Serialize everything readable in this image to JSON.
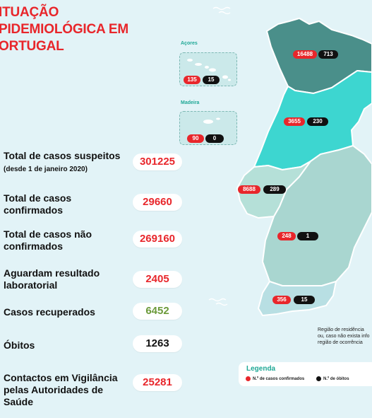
{
  "title": {
    "line1": "ITUAÇÃO",
    "line2": "PIDEMIOLÓGICA EM",
    "line3": "ORTUGAL"
  },
  "stats": [
    {
      "label": "Total de casos suspeitos",
      "sub": "(desde 1 de janeiro 2020)",
      "value": "301225"
    },
    {
      "label": "Total de casos confirmados",
      "value": "29660"
    },
    {
      "label": "Total de casos não confirmados",
      "value": "269160"
    },
    {
      "label": "Aguardam resultado laboratorial",
      "value": "2405"
    },
    {
      "label": "Casos recuperados",
      "value": "6452"
    },
    {
      "label": "Óbitos",
      "value": "1263"
    },
    {
      "label": "Contactos em Vigilância pelas Autoridades de Saúde",
      "value": "25281"
    }
  ],
  "islands": {
    "acores": {
      "label": "Açores",
      "confirmed": "135",
      "deaths": "15"
    },
    "madeira": {
      "label": "Madeira",
      "confirmed": "90",
      "deaths": "0"
    }
  },
  "regions": {
    "norte": {
      "confirmed": "16488",
      "deaths": "713",
      "color": "#4a8f8a"
    },
    "centro": {
      "confirmed": "3655",
      "deaths": "230",
      "color": "#3dd6d0"
    },
    "lisboa": {
      "confirmed": "8688",
      "deaths": "289",
      "color": "#b5e0d8"
    },
    "alentejo": {
      "confirmed": "248",
      "deaths": "1",
      "color": "#a9d6d0"
    },
    "algarve": {
      "confirmed": "356",
      "deaths": "15",
      "color": "#b8dfe3"
    }
  },
  "note": {
    "line1": "Região de residência",
    "line2": "ou, caso não exista info",
    "line3": "região de ocorrência"
  },
  "legend": {
    "title": "Legenda",
    "confirmed": "N.º de casos confirmados",
    "deaths": "N.º de óbitos",
    "confirmed_color": "#e8262b",
    "deaths_color": "#111111"
  }
}
